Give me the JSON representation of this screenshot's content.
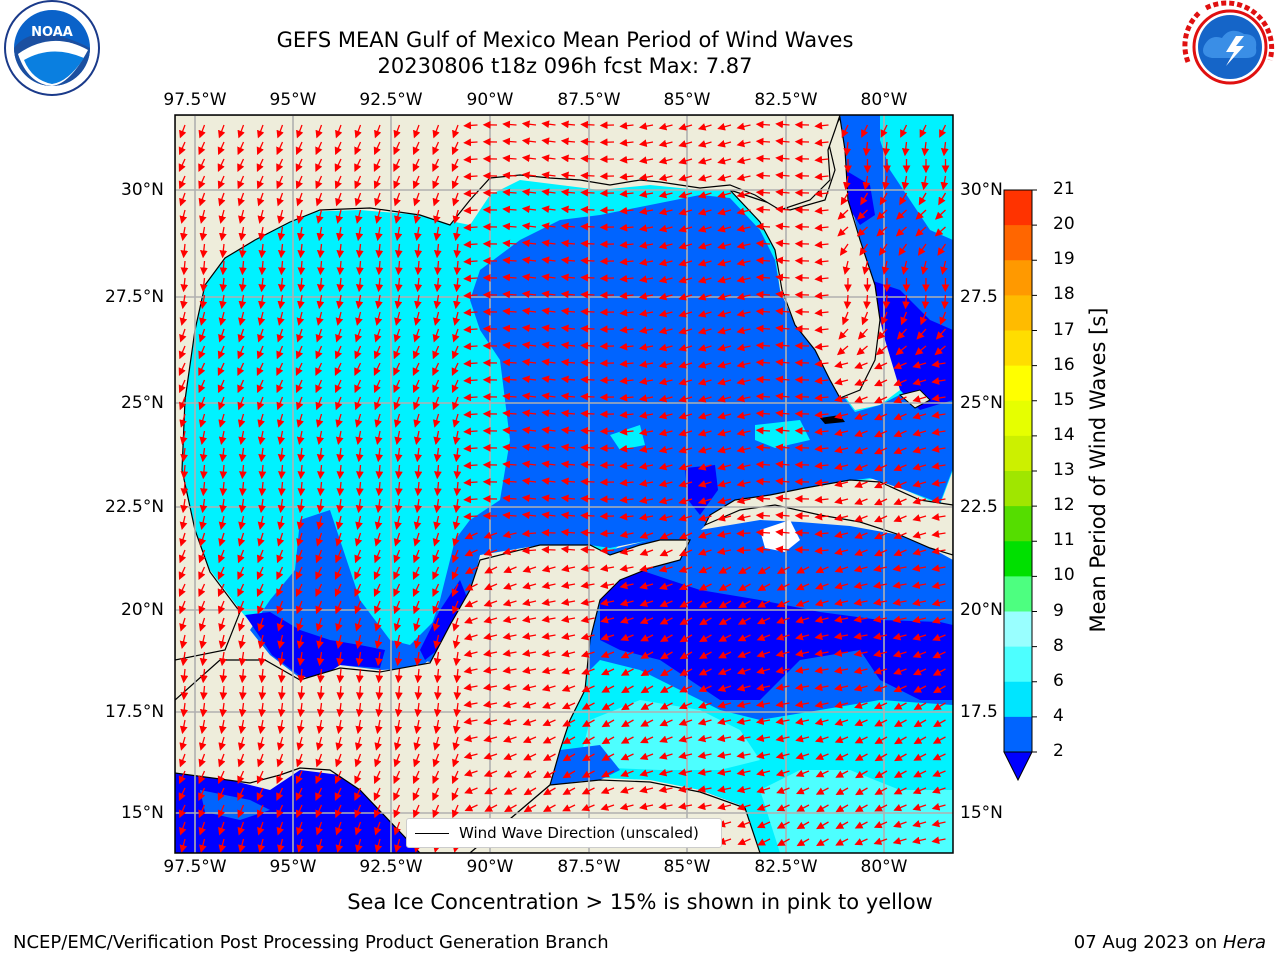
{
  "title": {
    "line1": "GEFS MEAN Gulf of Mexico Mean Period of Wind Waves",
    "line2": "20230806 t18z 096h fcst   Max: 7.87"
  },
  "logos": {
    "left": {
      "icon": "noaa-logo-icon",
      "text": "NOAA",
      "ring_text": "NATIONAL OCEANIC AND ATMOSPHERIC ADMINISTRATION · U.S. DEPARTMENT OF COMMERCE"
    },
    "right": {
      "icon": "nws-logo-icon",
      "ring_text": "NATIONAL WEATHER SERVICE"
    }
  },
  "map": {
    "lon_labels": [
      "97.5°W",
      "95°W",
      "92.5°W",
      "90°W",
      "87.5°W",
      "85°W",
      "82.5°W",
      "80°W"
    ],
    "lat_labels": [
      "30°N",
      "27.5°N",
      "25°N",
      "22.5°N",
      "20°N",
      "17.5°N",
      "15°N"
    ],
    "lat_labels_right": [
      "30°N",
      "27.5",
      "25°N",
      "22.5",
      "20°N",
      "17.5",
      "15°N"
    ],
    "lon_range": [
      -98,
      -78.2
    ],
    "lat_range": [
      14,
      31.6
    ],
    "land_color": "#eeeddb",
    "ocean_color": "#ffffff",
    "arrow_color": "#ff0000",
    "legend_text": "Wind Wave Direction (unscaled)"
  },
  "colorbar": {
    "label": "Mean Period of Wind Waves [s]",
    "ticks": [
      "2",
      "4",
      "6",
      "8",
      "9",
      "10",
      "11",
      "12",
      "13",
      "14",
      "15",
      "16",
      "17",
      "18",
      "19",
      "20",
      "21"
    ],
    "colors": [
      "#0064ff",
      "#00e5ff",
      "#4dffff",
      "#99ffff",
      "#4dff80",
      "#00e000",
      "#55dd00",
      "#a0e600",
      "#ccf000",
      "#e6ff00",
      "#ffff00",
      "#ffdd00",
      "#ffbb00",
      "#ff9900",
      "#ff6600",
      "#ff3300"
    ],
    "under_color": "#0000ff",
    "top_color": "#ff0000"
  },
  "footer": {
    "note": "Sea Ice Concentration > 15% is shown in pink to yellow",
    "left": "NCEP/EMC/Verification Post Processing Product Generation Branch",
    "right_date": "07 Aug 2023 on ",
    "right_host": "Hera"
  }
}
